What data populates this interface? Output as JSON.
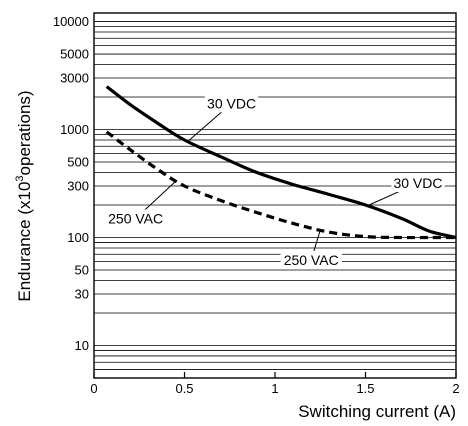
{
  "chart_data": {
    "type": "line",
    "title": "",
    "xlabel": "Switching current (A)",
    "ylabel_parts": {
      "before": "Endurance (x10",
      "sup": "3",
      "after": "operations)"
    },
    "xlim": [
      0,
      2
    ],
    "ylim": [
      5,
      12000
    ],
    "y_scale": "log",
    "grid": true,
    "x_ticks": [
      {
        "value": 0,
        "label": "0"
      },
      {
        "value": 0.5,
        "label": "0.5"
      },
      {
        "value": 1,
        "label": "1"
      },
      {
        "value": 1.5,
        "label": "1.5"
      },
      {
        "value": 2,
        "label": "2"
      }
    ],
    "y_ticks": [
      {
        "value": 10,
        "label": "10"
      },
      {
        "value": 30,
        "label": "30"
      },
      {
        "value": 50,
        "label": "50"
      },
      {
        "value": 100,
        "label": "100"
      },
      {
        "value": 300,
        "label": "300"
      },
      {
        "value": 500,
        "label": "500"
      },
      {
        "value": 1000,
        "label": "1000"
      },
      {
        "value": 3000,
        "label": "3000"
      },
      {
        "value": 5000,
        "label": "5000"
      },
      {
        "value": 10000,
        "label": "10000"
      }
    ],
    "y_grid": [
      6,
      7,
      8,
      9,
      10,
      20,
      30,
      40,
      50,
      60,
      70,
      80,
      90,
      100,
      200,
      300,
      400,
      500,
      600,
      700,
      800,
      900,
      1000,
      2000,
      3000,
      4000,
      5000,
      6000,
      7000,
      8000,
      9000,
      10000
    ],
    "series": [
      {
        "name": "30 VDC",
        "style": "solid",
        "x": [
          0.07,
          0.2,
          0.35,
          0.5,
          0.7,
          0.9,
          1.1,
          1.3,
          1.5,
          1.7,
          1.85,
          2.0
        ],
        "y": [
          2500,
          1700,
          1150,
          800,
          560,
          400,
          310,
          250,
          200,
          150,
          115,
          100
        ]
      },
      {
        "name": "250 VAC",
        "style": "dashed",
        "x": [
          0.07,
          0.2,
          0.35,
          0.5,
          0.7,
          0.9,
          1.1,
          1.3,
          1.5,
          1.7,
          1.85,
          2.0
        ],
        "y": [
          950,
          650,
          430,
          300,
          220,
          170,
          135,
          112,
          102,
          100,
          100,
          100
        ]
      }
    ],
    "annotations": [
      {
        "text": "30 VDC",
        "series": 0,
        "x": 0.52,
        "y": 780,
        "label_x": 0.76,
        "label_y": 1750
      },
      {
        "text": "30 VDC",
        "series": 0,
        "x": 1.52,
        "y": 200,
        "label_x": 1.79,
        "label_y": 320
      },
      {
        "text": "250 VAC",
        "series": 1,
        "x": 0.45,
        "y": 330,
        "label_x": 0.23,
        "label_y": 150
      },
      {
        "text": "250 VAC",
        "series": 1,
        "x": 1.25,
        "y": 117,
        "label_x": 1.2,
        "label_y": 62
      }
    ]
  }
}
